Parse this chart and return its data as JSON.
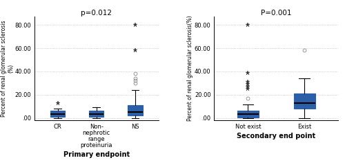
{
  "left_title": "p=0.012",
  "right_title": "P=0.001",
  "left_xlabel": "Primary endpoint",
  "right_xlabel": "Secondary end point",
  "left_ylabel": "Percent of renal glomerular sclerosis\n(%)",
  "right_ylabel": "Percent of renal glomerular sclerosis(%)",
  "ylim": [
    -2,
    87
  ],
  "yticks": [
    0,
    20,
    40,
    60,
    80
  ],
  "yticklabels": [
    ".00",
    "20.00",
    "40.00",
    "60.00",
    "80.00"
  ],
  "left_categories": [
    "CR",
    "Non-\nnephrotic\nrange\nproteinuria",
    "NS"
  ],
  "right_categories": [
    "Not exist",
    "Exist"
  ],
  "box_facecolor": "#4F8FD0",
  "box_edgecolor": "#2B5FA8",
  "median_color": "#000000",
  "whisker_color": "#000000",
  "left_boxes": [
    {
      "q1": 1.0,
      "median": 3.0,
      "q3": 6.0,
      "whislo": 0.0,
      "whishi": 8.0,
      "fliers_circles": [],
      "fliers_stars": [
        13
      ]
    },
    {
      "q1": 1.0,
      "median": 3.0,
      "q3": 6.5,
      "whislo": 0.0,
      "whishi": 9.0,
      "fliers_circles": [],
      "fliers_stars": []
    },
    {
      "q1": 2.0,
      "median": 5.0,
      "q3": 11.0,
      "whislo": 0.0,
      "whishi": 24.0,
      "fliers_circles": [
        30,
        32,
        34,
        38
      ],
      "fliers_stars": [
        58,
        80
      ]
    }
  ],
  "right_boxes": [
    {
      "q1": 0.5,
      "median": 3.0,
      "q3": 6.0,
      "whislo": 0.0,
      "whishi": 11.5,
      "fliers_circles": [
        17
      ],
      "fliers_stars": [
        25,
        27,
        29,
        31,
        39,
        80
      ]
    },
    {
      "q1": 8.0,
      "median": 13.0,
      "q3": 21.0,
      "whislo": 0.0,
      "whishi": 34.0,
      "fliers_circles": [
        58
      ],
      "fliers_stars": []
    }
  ],
  "background_color": "#ffffff",
  "grid_color": "#BBBBBB",
  "title_fontsize": 7.5,
  "xlabel_fontsize": 7,
  "ylabel_fontsize": 5.5,
  "tick_fontsize": 6,
  "flier_star_size": 5,
  "flier_circle_size": 3.5
}
